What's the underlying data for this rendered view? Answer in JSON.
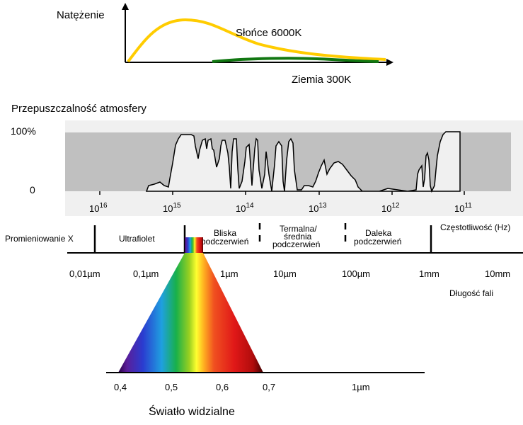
{
  "intensity": {
    "title": "Natężenie",
    "sun_label": "Słońce 6000K",
    "earth_label": "Ziemia 300K",
    "sun_color": "#FFCC00",
    "earth_color": "#117711"
  },
  "transmittance": {
    "title": "Przepuszczalność atmosfery",
    "y_top": "100%",
    "y_bottom": "0",
    "fill_color": "#C0C0C0",
    "frequency_ticks": [
      {
        "base": "10",
        "exp": "16"
      },
      {
        "base": "10",
        "exp": "15"
      },
      {
        "base": "10",
        "exp": "14"
      },
      {
        "base": "10",
        "exp": "13"
      },
      {
        "base": "10",
        "exp": "12"
      },
      {
        "base": "10",
        "exp": "11"
      }
    ]
  },
  "bands": {
    "xray": "Promieniowanie X",
    "uv": "Ultrafiolet",
    "near_ir_1": "Bliska",
    "near_ir_2": "podczerwień",
    "mid_ir_1": "Termalna/",
    "mid_ir_2": "średnia",
    "mid_ir_3": "podczerwień",
    "far_ir_1": "Daleka",
    "far_ir_2": "podczerwień",
    "frequency_unit": "Częstotliwość (Hz)",
    "wavelength_unit": "Długość fali"
  },
  "wavelength_ticks": [
    "0,01µm",
    "0,1µm",
    "1µm",
    "10µm",
    "100µm",
    "1mm",
    "10mm"
  ],
  "visible": {
    "ticks": [
      "0,4",
      "0,5",
      "0,6",
      "0,7",
      "1µm"
    ],
    "title": "Światło widzialne"
  }
}
